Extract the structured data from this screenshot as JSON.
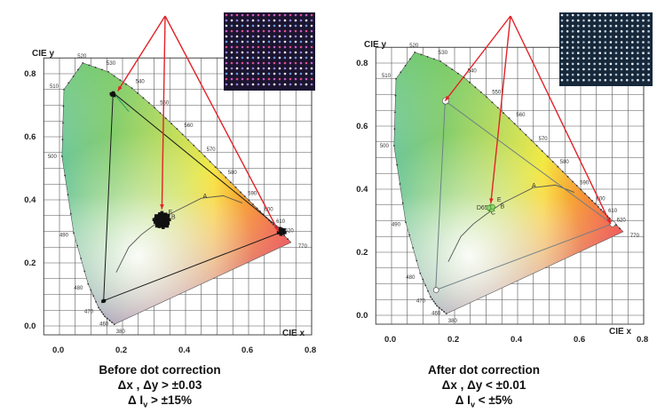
{
  "panels": [
    {
      "id": "before",
      "axis": {
        "ylabel": "CIE y",
        "xlabel": "CIE x",
        "xticks": [
          "0.0",
          "0.2",
          "0.4",
          "0.6",
          "0.8"
        ],
        "yticks": [
          "0.0",
          "0.2",
          "0.4",
          "0.6",
          "0.8"
        ]
      },
      "wavelengths": [
        "520",
        "530",
        "540",
        "510",
        "550",
        "560",
        "570",
        "500",
        "580",
        "590",
        "600",
        "610",
        "620",
        "490",
        "770",
        "480",
        "470",
        "460",
        "380"
      ],
      "point_labels": [
        "D65",
        "A",
        "B",
        "C",
        "E"
      ],
      "caption": {
        "title": "Before dot correction",
        "line2": "Δx , Δy  > ±0.03",
        "line3": "Δ Iv > ±15%"
      }
    },
    {
      "id": "after",
      "axis": {
        "ylabel": "CIE y",
        "xlabel": "CIE x",
        "xticks": [
          "0.0",
          "0.2",
          "0.4",
          "0.6",
          "0.8"
        ],
        "yticks": [
          "0.0",
          "0.2",
          "0.4",
          "0.6",
          "0.8"
        ]
      },
      "wavelengths": [
        "520",
        "530",
        "540",
        "510",
        "550",
        "560",
        "570",
        "500",
        "580",
        "590",
        "600",
        "610",
        "620",
        "490",
        "770",
        "480",
        "470",
        "460",
        "380"
      ],
      "point_labels": [
        "D65",
        "A",
        "B",
        "C",
        "E"
      ],
      "caption": {
        "title": "After dot correction",
        "line2": "Δx , Δy < ±0.01",
        "line3": "Δ Iv < ±5%"
      }
    }
  ],
  "colors": {
    "arrow": "#e32228",
    "triangle_left": "#1a1a1a",
    "triangle_right": "#6f7f86",
    "green_line": "#2a9a5a",
    "grid": "#555555"
  },
  "icons": [
    "led-dot-matrix-inset-before",
    "led-dot-matrix-inset-after"
  ]
}
